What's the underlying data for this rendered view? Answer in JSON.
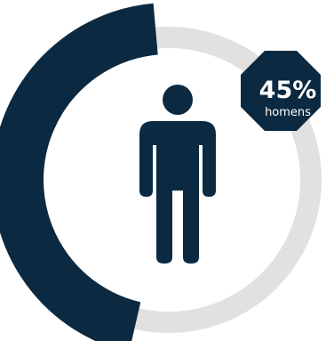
{
  "stat": {
    "percent_label": "45%",
    "percent_value": 45,
    "caption": "homens"
  },
  "icon": "male-person-icon",
  "colors": {
    "primary": "#0b2a42",
    "track": "#e1e1e1",
    "text_on_primary": "#ffffff",
    "background": "#ffffff"
  }
}
